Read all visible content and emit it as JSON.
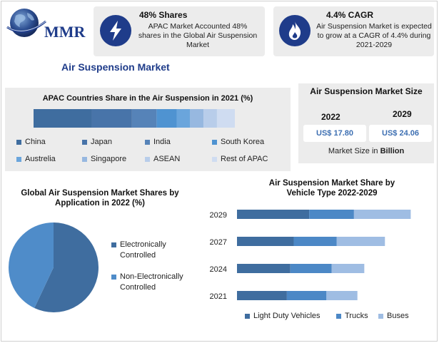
{
  "brand": {
    "name": "MMR"
  },
  "highlights": [
    {
      "icon": "lightning-icon",
      "title": "48% Shares",
      "text": "APAC Market Accounted 48% shares in the Global Air Suspension Market"
    },
    {
      "icon": "flame-icon",
      "title": "4.4% CAGR",
      "text": "Air Suspension Market is expected to grow at a CAGR of 4.4% during 2021-2029"
    }
  ],
  "page_title": "Air Suspension Market",
  "market_size": {
    "title": "Air Suspension Market Size",
    "years": [
      "2022",
      "2029"
    ],
    "values": [
      "US$ 17.80",
      "US$ 24.06"
    ],
    "unit_note": "Market Size in",
    "unit_word": "Billion"
  },
  "colors": {
    "accent": "#1f3c8a",
    "panel": "#ececec",
    "series": [
      "#3f6d9f",
      "#4c88c6",
      "#9fbde3"
    ]
  },
  "chart_data": [
    {
      "type": "bar",
      "orientation": "horizontal-stacked-single",
      "title": "APAC Countries Share in the Air Suspension in 2021 (%)",
      "categories": [
        "China",
        "Japan",
        "India",
        "South Korea",
        "Austrelia",
        "Singapore",
        "ASEAN",
        "Rest of APAC"
      ],
      "values": [
        26,
        18,
        11,
        9,
        6,
        6,
        6,
        8
      ],
      "colors": [
        "#3f6d9f",
        "#4874a9",
        "#5683b8",
        "#4f93d1",
        "#6aa5dc",
        "#97b8e0",
        "#b8cdea",
        "#cfdcf1"
      ],
      "legend": "bottom"
    },
    {
      "type": "pie",
      "title": "Global Air Suspension Market Shares by Application in 2022 (%)",
      "categories": [
        "Electronically Controlled",
        "Non-Electronically Controlled"
      ],
      "values": [
        57,
        43
      ],
      "colors": [
        "#3f6d9f",
        "#4f8cc9"
      ],
      "legend": "right"
    },
    {
      "type": "bar",
      "orientation": "horizontal-stacked",
      "title": "Air Suspension Market Share by Vehicle Type 2022-2029",
      "categories": [
        "2029",
        "2027",
        "2024",
        "2021"
      ],
      "series": [
        {
          "name": "Light Duty Vehicles",
          "values": [
            42,
            33,
            31,
            29
          ]
        },
        {
          "name": "Trucks",
          "values": [
            26,
            25,
            24,
            23
          ]
        },
        {
          "name": "Buses",
          "values": [
            33,
            28,
            19,
            18
          ]
        }
      ],
      "legend": "bottom",
      "grid": false
    }
  ]
}
